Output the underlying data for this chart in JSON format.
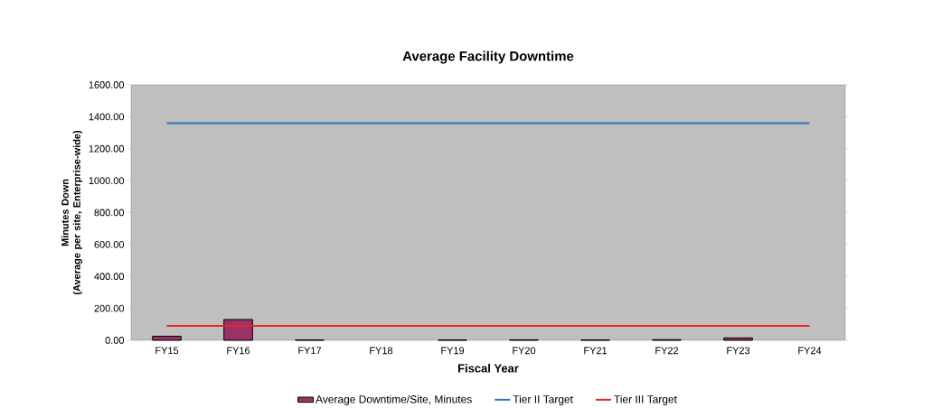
{
  "chart_data": {
    "type": "bar",
    "title": "Average Facility Downtime",
    "xlabel": "Fiscal Year",
    "ylabel": "Minutes Down\n(Average per site, Enterprise-wide)",
    "categories": [
      "FY15",
      "FY16",
      "FY17",
      "FY18",
      "FY19",
      "FY20",
      "FY21",
      "FY22",
      "FY23",
      "FY24"
    ],
    "series": [
      {
        "name": "Average Downtime/Site, Minutes",
        "color": "#993366",
        "values": [
          25,
          130,
          2,
          null,
          2,
          3,
          2,
          4,
          15,
          null
        ]
      },
      {
        "name": "Tier II Target",
        "type": "line",
        "color": "#2e75b6",
        "values": [
          1360,
          1360,
          1360,
          1360,
          1360,
          1360,
          1360,
          1360,
          1360,
          1360
        ]
      },
      {
        "name": "Tier III Target",
        "type": "line",
        "color": "#e8252a",
        "values": [
          90,
          90,
          90,
          90,
          90,
          90,
          90,
          90,
          90,
          90
        ]
      }
    ],
    "ylim": [
      0,
      1600
    ],
    "yticks": [
      {
        "value": 0,
        "label": "0.00"
      },
      {
        "value": 200,
        "label": "200.00"
      },
      {
        "value": 400,
        "label": "400.00"
      },
      {
        "value": 600,
        "label": "600.00"
      },
      {
        "value": 800,
        "label": "800.00"
      },
      {
        "value": 1000,
        "label": "1000.00"
      },
      {
        "value": 1200,
        "label": "1200.00"
      },
      {
        "value": 1400,
        "label": "1400.00"
      },
      {
        "value": 1600,
        "label": "1600.00"
      }
    ],
    "legend": "bottom"
  }
}
